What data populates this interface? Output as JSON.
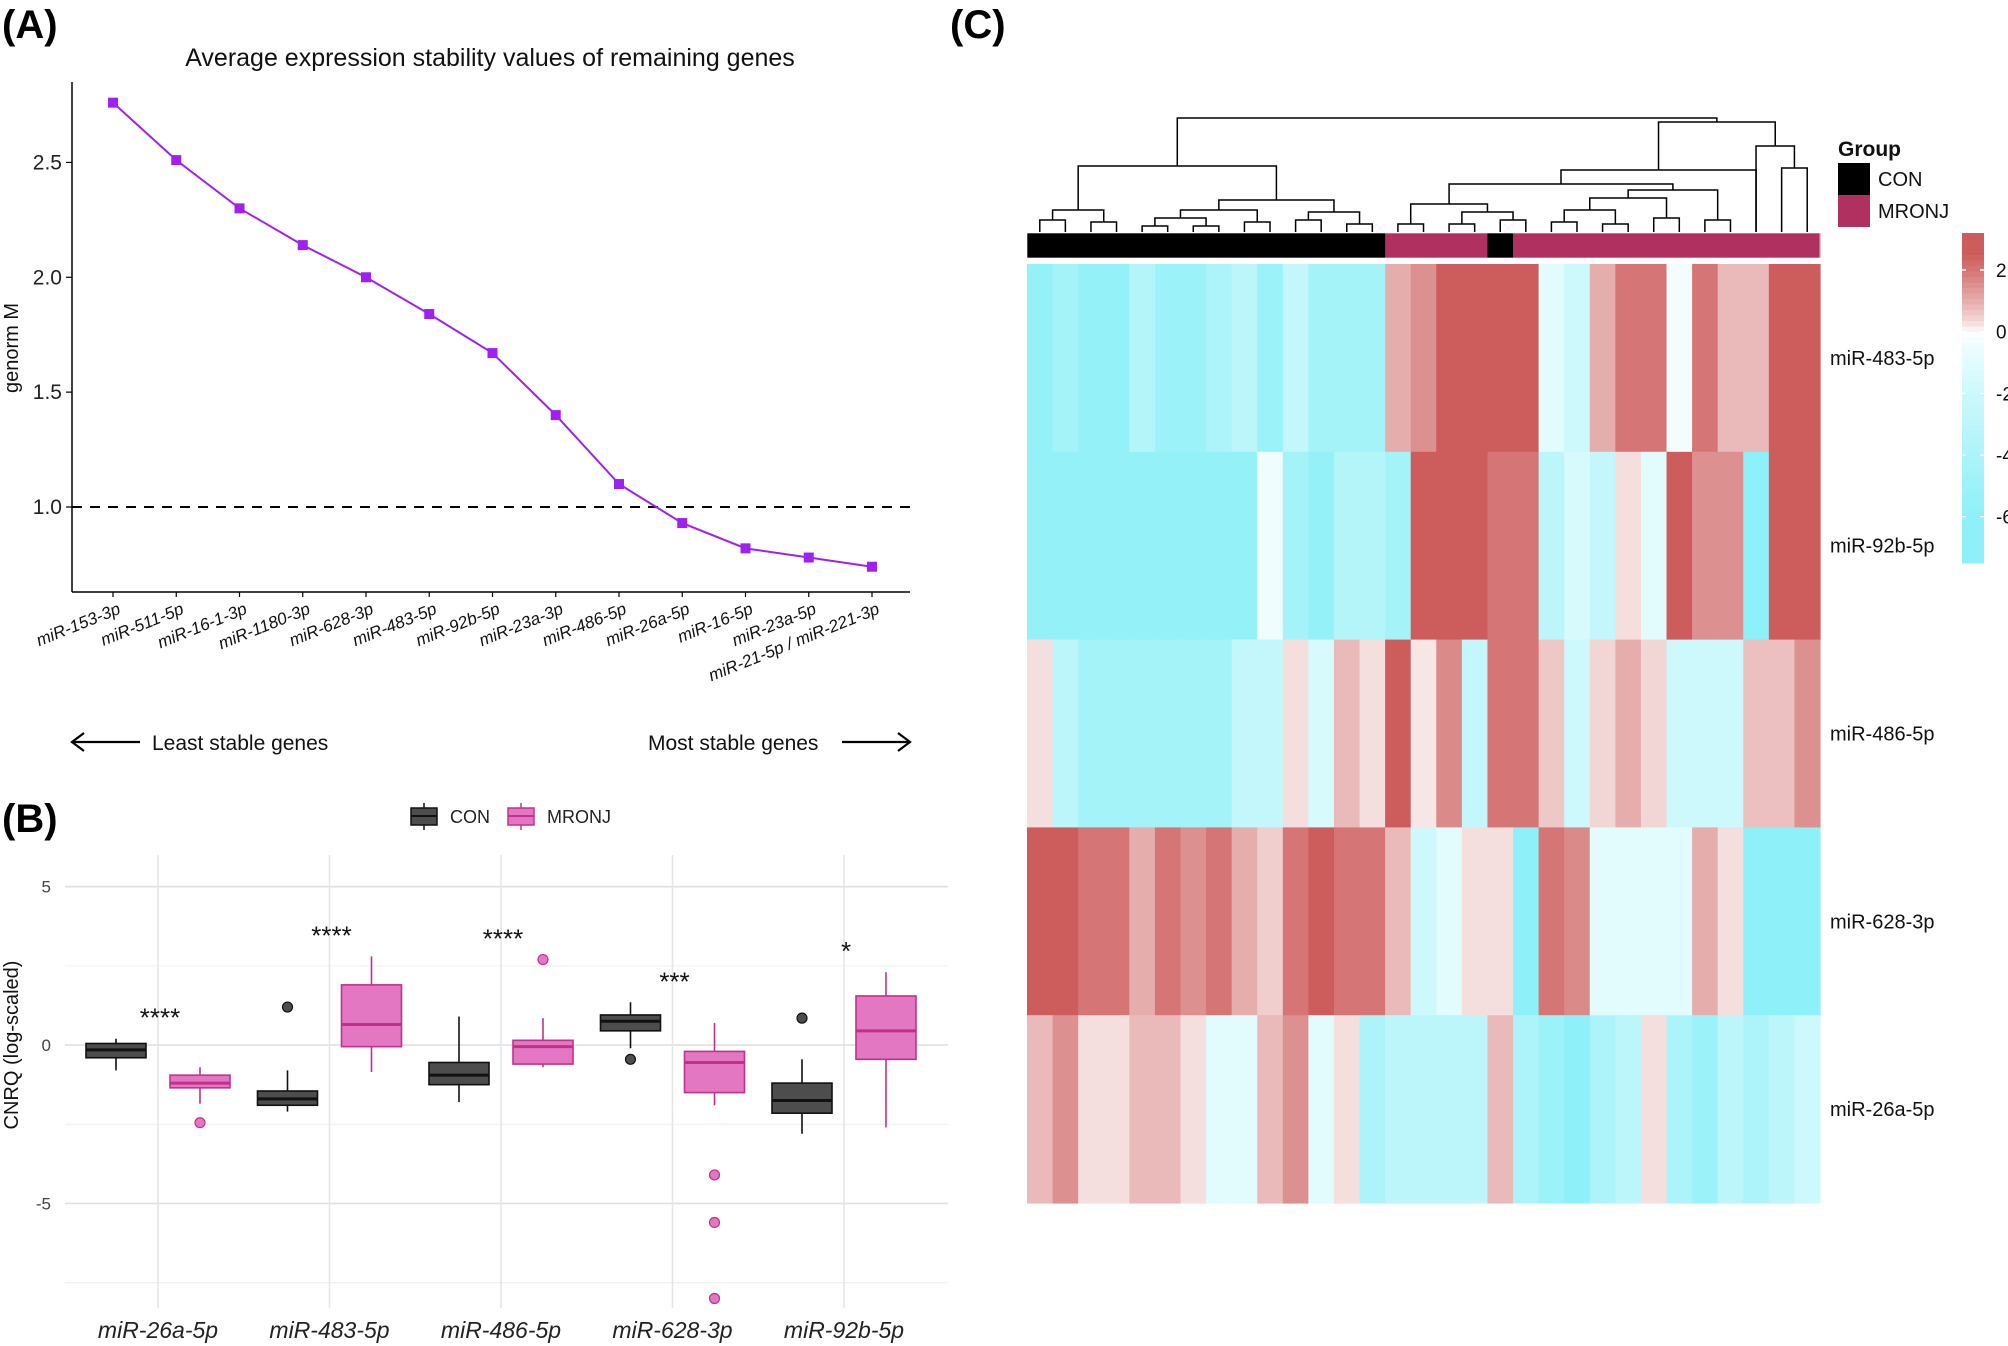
{
  "panel_labels": {
    "a": "(A)",
    "b": "(B)",
    "c": "(C)"
  },
  "chart_data": [
    {
      "type": "line",
      "title": "Average expression stability values of remaining genes",
      "ylabel": "genorm M",
      "xlabel": "",
      "categories": [
        "miR-153-3p",
        "miR-511-5p",
        "miR-16-1-3p",
        "miR-1180-3p",
        "miR-628-3p",
        "miR-483-5p",
        "miR-92b-5p",
        "miR-23a-3p",
        "miR-486-5p",
        "miR-26a-5p",
        "miR-16-5p",
        "miR-23a-5p",
        "miR-21-5p / miR-221-3p"
      ],
      "values": [
        2.76,
        2.51,
        2.3,
        2.14,
        2.0,
        1.84,
        1.67,
        1.4,
        1.1,
        0.93,
        0.82,
        0.78,
        0.74
      ],
      "ylim": [
        0.63,
        2.85
      ],
      "yticks": [
        "1.0",
        "1.5",
        "2.0",
        "2.5"
      ],
      "threshold": 1.0,
      "color": "#a020f0",
      "arrow_left": "Least stable genes",
      "arrow_right": "Most stable genes"
    },
    {
      "type": "box",
      "ylabel": "CNRQ (log-scaled)",
      "ylim": [
        -8.3,
        6.0
      ],
      "yticks": [
        5,
        0,
        -5
      ],
      "ytick_labels": [
        "5",
        "0",
        "-5"
      ],
      "categories": [
        "miR-26a-5p",
        "miR-483-5p",
        "miR-486-5p",
        "miR-628-3p",
        "miR-92b-5p"
      ],
      "legend": [
        "CON",
        "MRONJ"
      ],
      "colors": {
        "CON": "#4d4d4d",
        "CON_stroke": "#111111",
        "MRONJ": "#e377c2",
        "MRONJ_stroke": "#c2308e"
      },
      "significance": [
        "****",
        "****",
        "****",
        "***",
        "*"
      ],
      "series": [
        {
          "name": "CON",
          "boxes": [
            {
              "min": -0.8,
              "q1": -0.4,
              "median": -0.15,
              "q3": 0.05,
              "max": 0.2,
              "outliers": []
            },
            {
              "min": -2.1,
              "q1": -1.9,
              "median": -1.7,
              "q3": -1.45,
              "max": -0.8,
              "outliers": [
                1.2
              ]
            },
            {
              "min": -1.8,
              "q1": -1.25,
              "median": -0.95,
              "q3": -0.55,
              "max": 0.9,
              "outliers": []
            },
            {
              "min": -0.1,
              "q1": 0.45,
              "median": 0.75,
              "q3": 0.95,
              "max": 1.35,
              "outliers": [
                -0.45
              ]
            },
            {
              "min": -2.8,
              "q1": -2.15,
              "median": -1.75,
              "q3": -1.2,
              "max": -0.45,
              "outliers": [
                0.85
              ]
            }
          ]
        },
        {
          "name": "MRONJ",
          "boxes": [
            {
              "min": -1.85,
              "q1": -1.35,
              "median": -1.2,
              "q3": -0.95,
              "max": -0.7,
              "outliers": [
                -2.45
              ]
            },
            {
              "min": -0.85,
              "q1": -0.05,
              "median": 0.65,
              "q3": 1.9,
              "max": 2.8,
              "outliers": []
            },
            {
              "min": -0.7,
              "q1": -0.6,
              "median": -0.05,
              "q3": 0.15,
              "max": 0.85,
              "outliers": [
                2.7
              ]
            },
            {
              "min": -1.9,
              "q1": -1.5,
              "median": -0.55,
              "q3": -0.2,
              "max": 0.7,
              "outliers": [
                -4.1,
                -5.6,
                -8.0
              ]
            },
            {
              "min": -2.6,
              "q1": -0.45,
              "median": 0.45,
              "q3": 1.55,
              "max": 2.3,
              "outliers": []
            }
          ]
        }
      ]
    },
    {
      "type": "heatmap",
      "rows": [
        "miR-483-5p",
        "miR-92b-5p",
        "miR-486-5p",
        "miR-628-3p",
        "miR-26a-5p"
      ],
      "groups": [
        "CON",
        "CON",
        "CON",
        "CON",
        "CON",
        "CON",
        "CON",
        "CON",
        "CON",
        "CON",
        "CON",
        "CON",
        "CON",
        "CON",
        "MRONJ",
        "MRONJ",
        "MRONJ",
        "MRONJ",
        "CON",
        "MRONJ",
        "MRONJ",
        "MRONJ",
        "MRONJ",
        "MRONJ",
        "MRONJ",
        "MRONJ",
        "MRONJ",
        "MRONJ",
        "MRONJ",
        "MRONJ",
        "MRONJ"
      ],
      "values": [
        [
          -5.5,
          -4.5,
          -5.5,
          -5.5,
          -3.5,
          -5,
          -5,
          -4,
          -3,
          -5,
          -2.5,
          -4.5,
          -4.5,
          -4.5,
          1,
          1.5,
          2.5,
          2.5,
          2.5,
          2.5,
          -1,
          -2,
          1,
          2,
          2,
          -0.3,
          2,
          0.8,
          0.8,
          2.5,
          2.5
        ],
        [
          -5.5,
          -5.5,
          -5.5,
          -5.5,
          -5.5,
          -5.5,
          -5.5,
          -5.5,
          -5.5,
          -0.4,
          -4.5,
          -5.5,
          -3.5,
          -3.5,
          -4.5,
          2.5,
          2.5,
          2.5,
          2,
          2,
          -3,
          -1.5,
          -2.5,
          0.3,
          -1,
          2.5,
          1.5,
          1.5,
          -6,
          2.5,
          2.5
        ],
        [
          0.3,
          -3,
          -4.5,
          -4.5,
          -4.5,
          -4.5,
          -4.5,
          -4.5,
          -2.5,
          -2.5,
          0.3,
          -1.5,
          0.8,
          0.3,
          2.5,
          0.2,
          1.6,
          -2.5,
          2,
          2,
          0.6,
          -2,
          0.4,
          1,
          0.4,
          -2,
          -2,
          -2,
          0.7,
          0.7,
          1.5
        ],
        [
          2.5,
          2.5,
          2,
          2,
          1,
          2,
          1.5,
          2,
          1,
          0.5,
          2,
          2.5,
          2,
          2,
          0.8,
          -2,
          -1,
          0.3,
          0.3,
          -6,
          2,
          1.6,
          -1,
          -1,
          -1,
          -1,
          1,
          0.3,
          -6,
          -6,
          -6
        ],
        [
          0.8,
          1.5,
          0.3,
          0.3,
          0.8,
          0.8,
          0.3,
          -1,
          -1,
          0.8,
          1.5,
          -1,
          0.3,
          -4,
          -3,
          -3,
          -3,
          -3,
          0.8,
          -4,
          -5,
          -6,
          -4,
          -3,
          0.3,
          -4,
          -5,
          -3,
          -4,
          -3,
          -2
        ]
      ],
      "legend_title": "Group",
      "legend_items": [
        "CON",
        "MRONJ"
      ],
      "group_colors": {
        "CON": "#000000",
        "MRONJ": "#b03060"
      },
      "colorbar_ticks": [
        2,
        0,
        -2,
        -4,
        -6
      ],
      "colorbar_tick_labels": [
        "2",
        "0",
        "-2",
        "-4",
        "-6"
      ],
      "colorbar_range": [
        -7.5,
        3.2
      ],
      "colors": {
        "high": "#cd5c5c",
        "mid": "#ffffff",
        "low": "#8ef0f8"
      }
    }
  ]
}
